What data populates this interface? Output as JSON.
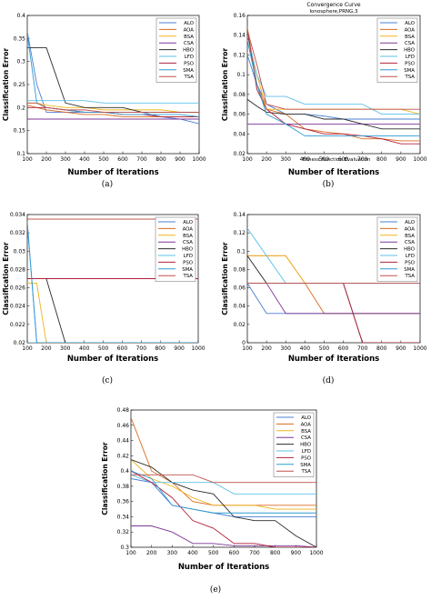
{
  "colors": {
    "ALO": "#4a7fd4",
    "AOA": "#d96a1f",
    "BSA": "#f0b21a",
    "CSA": "#7e3795",
    "HBO": "#2b2b2b",
    "LFD": "#5cc0e8",
    "PSO": "#b0203a",
    "SMA": "#2f9bd0",
    "TSA": "#c0504d"
  },
  "legend": [
    "ALO",
    "AOA",
    "BSA",
    "CSA",
    "HBO",
    "LFD",
    "PSO",
    "SMA",
    "TSA"
  ],
  "chart_data": [
    {
      "type": "line",
      "caption": "(a)",
      "xlabel": "Number of Iterations",
      "ylabel": "Classification Error",
      "xlim": [
        100,
        1000
      ],
      "ylim": [
        0.1,
        0.4
      ],
      "xticks": [
        100,
        200,
        300,
        400,
        500,
        600,
        700,
        800,
        900,
        1000
      ],
      "yticks": [
        0.1,
        0.15,
        0.2,
        0.25,
        0.3,
        0.35,
        0.4
      ],
      "legend_position": "top-right",
      "x": [
        100,
        150,
        200,
        300,
        400,
        500,
        600,
        700,
        800,
        900,
        1000
      ],
      "series": [
        {
          "name": "ALO",
          "values": [
            0.365,
            0.25,
            0.19,
            0.19,
            0.19,
            0.19,
            0.19,
            0.19,
            0.18,
            0.175,
            0.165
          ]
        },
        {
          "name": "AOA",
          "values": [
            0.205,
            0.2,
            0.195,
            0.19,
            0.185,
            0.185,
            0.18,
            0.18,
            0.18,
            0.18,
            0.18
          ]
        },
        {
          "name": "BSA",
          "values": [
            0.21,
            0.21,
            0.205,
            0.2,
            0.2,
            0.195,
            0.195,
            0.195,
            0.195,
            0.19,
            0.19
          ]
        },
        {
          "name": "CSA",
          "values": [
            0.175,
            0.175,
            0.175,
            0.175,
            0.175,
            0.175,
            0.175,
            0.175,
            0.175,
            0.175,
            0.175
          ]
        },
        {
          "name": "HBO",
          "values": [
            0.33,
            0.33,
            0.33,
            0.21,
            0.2,
            0.2,
            0.2,
            0.19,
            0.19,
            0.19,
            0.19
          ]
        },
        {
          "name": "LFD",
          "values": [
            0.215,
            0.215,
            0.215,
            0.215,
            0.215,
            0.21,
            0.21,
            0.21,
            0.21,
            0.21,
            0.21
          ]
        },
        {
          "name": "PSO",
          "values": [
            0.2,
            0.2,
            0.2,
            0.195,
            0.19,
            0.19,
            0.185,
            0.185,
            0.18,
            0.18,
            0.18
          ]
        },
        {
          "name": "SMA",
          "values": [
            0.36,
            0.21,
            0.2,
            0.195,
            0.19,
            0.19,
            0.185,
            0.185,
            0.185,
            0.185,
            0.18
          ]
        },
        {
          "name": "TSA",
          "values": [
            0.21,
            0.21,
            0.2,
            0.195,
            0.195,
            0.19,
            0.19,
            0.19,
            0.19,
            0.19,
            0.19
          ]
        }
      ]
    },
    {
      "type": "line",
      "caption": "(b)",
      "title": "Convergence Curve",
      "subtitle": "Ionosphere,PRNG,3",
      "note": "Fitness Function Evaluation",
      "xlabel": "Number of Iterations",
      "ylabel": "Classification Error",
      "xlim": [
        100,
        1000
      ],
      "ylim": [
        0.02,
        0.16
      ],
      "xticks": [
        100,
        200,
        300,
        400,
        500,
        600,
        700,
        800,
        900,
        1000
      ],
      "yticks": [
        0.02,
        0.04,
        0.06,
        0.08,
        0.1,
        0.12,
        0.14,
        0.16
      ],
      "legend_position": "top-right",
      "x": [
        100,
        150,
        200,
        300,
        400,
        500,
        600,
        700,
        800,
        900,
        1000
      ],
      "series": [
        {
          "name": "ALO",
          "values": [
            0.12,
            0.09,
            0.07,
            0.06,
            0.06,
            0.058,
            0.055,
            0.055,
            0.055,
            0.055,
            0.055
          ]
        },
        {
          "name": "AOA",
          "values": [
            0.148,
            0.09,
            0.065,
            0.06,
            0.045,
            0.042,
            0.04,
            0.035,
            0.035,
            0.033,
            0.033
          ]
        },
        {
          "name": "BSA",
          "values": [
            0.14,
            0.1,
            0.065,
            0.065,
            0.065,
            0.065,
            0.065,
            0.065,
            0.065,
            0.065,
            0.06
          ]
        },
        {
          "name": "CSA",
          "values": [
            0.05,
            0.05,
            0.05,
            0.05,
            0.05,
            0.05,
            0.05,
            0.05,
            0.05,
            0.05,
            0.05
          ]
        },
        {
          "name": "HBO",
          "values": [
            0.075,
            0.068,
            0.062,
            0.06,
            0.06,
            0.055,
            0.055,
            0.05,
            0.045,
            0.045,
            0.045
          ]
        },
        {
          "name": "LFD",
          "values": [
            0.14,
            0.1,
            0.078,
            0.078,
            0.07,
            0.07,
            0.07,
            0.07,
            0.06,
            0.06,
            0.06
          ]
        },
        {
          "name": "PSO",
          "values": [
            0.145,
            0.085,
            0.065,
            0.05,
            0.045,
            0.04,
            0.04,
            0.038,
            0.035,
            0.03,
            0.03
          ]
        },
        {
          "name": "SMA",
          "values": [
            0.135,
            0.09,
            0.06,
            0.05,
            0.038,
            0.038,
            0.038,
            0.038,
            0.038,
            0.038,
            0.038
          ]
        },
        {
          "name": "TSA",
          "values": [
            0.145,
            0.11,
            0.07,
            0.065,
            0.065,
            0.065,
            0.065,
            0.065,
            0.065,
            0.065,
            0.065
          ]
        }
      ]
    },
    {
      "type": "line",
      "caption": "(c)",
      "xlabel": "Number of Iterations",
      "ylabel": "Classification Error",
      "xlim": [
        100,
        1000
      ],
      "ylim": [
        0.02,
        0.034
      ],
      "xticks": [
        100,
        200,
        300,
        400,
        500,
        600,
        700,
        800,
        900,
        1000
      ],
      "yticks": [
        0.02,
        0.022,
        0.024,
        0.026,
        0.028,
        0.03,
        0.032,
        0.034
      ],
      "legend_position": "top-right",
      "x": [
        100,
        150,
        200,
        300,
        400,
        500,
        600,
        700,
        800,
        900,
        1000
      ],
      "series": [
        {
          "name": "ALO",
          "values": [
            0.0332,
            0.02,
            0.02,
            0.02,
            0.02,
            0.02,
            0.02,
            0.02,
            0.02,
            0.02,
            0.02
          ]
        },
        {
          "name": "AOA",
          "values": [
            0.0335,
            0.0335,
            0.0335,
            0.0335,
            0.0335,
            0.0335,
            0.0335,
            0.0335,
            0.0335,
            0.0335,
            0.0335
          ]
        },
        {
          "name": "BSA",
          "values": [
            0.0265,
            0.0265,
            0.02,
            0.02,
            0.02,
            0.02,
            0.02,
            0.02,
            0.02,
            0.02,
            0.02
          ]
        },
        {
          "name": "CSA",
          "values": [
            0.02,
            0.02,
            0.02,
            0.02,
            0.02,
            0.02,
            0.02,
            0.02,
            0.02,
            0.02,
            0.02
          ]
        },
        {
          "name": "HBO",
          "values": [
            0.027,
            0.027,
            0.027,
            0.02,
            0.02,
            0.02,
            0.02,
            0.02,
            0.02,
            0.02,
            0.02
          ]
        },
        {
          "name": "LFD",
          "values": [
            0.02,
            0.02,
            0.02,
            0.02,
            0.02,
            0.02,
            0.02,
            0.02,
            0.02,
            0.02,
            0.02
          ]
        },
        {
          "name": "PSO",
          "values": [
            0.027,
            0.027,
            0.027,
            0.027,
            0.027,
            0.027,
            0.027,
            0.027,
            0.027,
            0.027,
            0.027
          ]
        },
        {
          "name": "SMA",
          "values": [
            0.033,
            0.02,
            0.02,
            0.02,
            0.02,
            0.02,
            0.02,
            0.02,
            0.02,
            0.02,
            0.02
          ]
        },
        {
          "name": "TSA",
          "values": [
            0.0335,
            0.0335,
            0.0335,
            0.0335,
            0.0335,
            0.0335,
            0.0335,
            0.0335,
            0.0335,
            0.0335,
            0.0335
          ]
        }
      ]
    },
    {
      "type": "line",
      "caption": "(d)",
      "xlabel": "Number of Iterations",
      "ylabel": "Classification Error",
      "xlim": [
        100,
        1000
      ],
      "ylim": [
        0,
        0.14
      ],
      "xticks": [
        100,
        200,
        300,
        400,
        500,
        600,
        700,
        800,
        900,
        1000
      ],
      "yticks": [
        0,
        0.02,
        0.04,
        0.06,
        0.08,
        0.1,
        0.12,
        0.14
      ],
      "legend_position": "top-right",
      "x": [
        100,
        200,
        300,
        400,
        500,
        600,
        700,
        800,
        900,
        1000
      ],
      "series": [
        {
          "name": "ALO",
          "values": [
            0.065,
            0.032,
            0.032,
            0.032,
            0.032,
            0.032,
            0.032,
            0.032,
            0.032,
            0.032
          ]
        },
        {
          "name": "AOA",
          "values": [
            0.095,
            0.095,
            0.095,
            0.065,
            0.032,
            0.032,
            0.032,
            0.032,
            0.032,
            0.032
          ]
        },
        {
          "name": "BSA",
          "values": [
            0.095,
            0.095,
            0.095,
            0.065,
            0.065,
            0.065,
            0.065,
            0.065,
            0.065,
            0.065
          ]
        },
        {
          "name": "CSA",
          "values": [
            0.065,
            0.065,
            0.032,
            0.032,
            0.032,
            0.032,
            0.032,
            0.032,
            0.032,
            0.032
          ]
        },
        {
          "name": "HBO",
          "values": [
            0.095,
            0.065,
            0.065,
            0.065,
            0.065,
            0.065,
            0.0,
            0.0,
            0.0,
            0.0
          ]
        },
        {
          "name": "LFD",
          "values": [
            0.125,
            0.095,
            0.065,
            0.065,
            0.065,
            0.065,
            0.065,
            0.065,
            0.065,
            0.065
          ]
        },
        {
          "name": "PSO",
          "values": [
            0.065,
            0.065,
            0.065,
            0.065,
            0.065,
            0.065,
            0.0,
            0.0,
            0.0,
            0.0
          ]
        },
        {
          "name": "SMA",
          "values": [
            0.065,
            0.065,
            0.065,
            0.065,
            0.065,
            0.065,
            0.065,
            0.065,
            0.065,
            0.065
          ]
        },
        {
          "name": "TSA",
          "values": [
            0.065,
            0.065,
            0.065,
            0.065,
            0.065,
            0.065,
            0.065,
            0.065,
            0.065,
            0.065
          ]
        }
      ]
    },
    {
      "type": "line",
      "caption": "(e)",
      "xlabel": "Number of Iterations",
      "ylabel": "Classification Error",
      "xlim": [
        100,
        1000
      ],
      "ylim": [
        0.3,
        0.48
      ],
      "xticks": [
        100,
        200,
        300,
        400,
        500,
        600,
        700,
        800,
        900,
        1000
      ],
      "yticks": [
        0.3,
        0.32,
        0.34,
        0.36,
        0.38,
        0.4,
        0.42,
        0.44,
        0.46,
        0.48
      ],
      "legend_position": "top-right",
      "x": [
        100,
        200,
        300,
        400,
        500,
        600,
        700,
        800,
        900,
        1000
      ],
      "series": [
        {
          "name": "ALO",
          "values": [
            0.39,
            0.385,
            0.355,
            0.35,
            0.345,
            0.34,
            0.34,
            0.34,
            0.34,
            0.34
          ]
        },
        {
          "name": "AOA",
          "values": [
            0.47,
            0.4,
            0.385,
            0.36,
            0.355,
            0.355,
            0.355,
            0.355,
            0.355,
            0.355
          ]
        },
        {
          "name": "BSA",
          "values": [
            0.415,
            0.39,
            0.38,
            0.365,
            0.355,
            0.355,
            0.355,
            0.35,
            0.35,
            0.35
          ]
        },
        {
          "name": "CSA",
          "values": [
            0.328,
            0.328,
            0.32,
            0.305,
            0.305,
            0.302,
            0.302,
            0.302,
            0.302,
            0.3
          ]
        },
        {
          "name": "HBO",
          "values": [
            0.415,
            0.405,
            0.385,
            0.375,
            0.37,
            0.34,
            0.335,
            0.335,
            0.315,
            0.3
          ]
        },
        {
          "name": "LFD",
          "values": [
            0.395,
            0.385,
            0.385,
            0.385,
            0.385,
            0.37,
            0.37,
            0.37,
            0.37,
            0.37
          ]
        },
        {
          "name": "PSO",
          "values": [
            0.4,
            0.385,
            0.365,
            0.335,
            0.325,
            0.305,
            0.305,
            0.3,
            0.3,
            0.3
          ]
        },
        {
          "name": "SMA",
          "values": [
            0.4,
            0.39,
            0.355,
            0.35,
            0.345,
            0.345,
            0.345,
            0.345,
            0.345,
            0.345
          ]
        },
        {
          "name": "TSA",
          "values": [
            0.395,
            0.395,
            0.395,
            0.395,
            0.385,
            0.385,
            0.385,
            0.385,
            0.385,
            0.385
          ]
        }
      ]
    }
  ]
}
